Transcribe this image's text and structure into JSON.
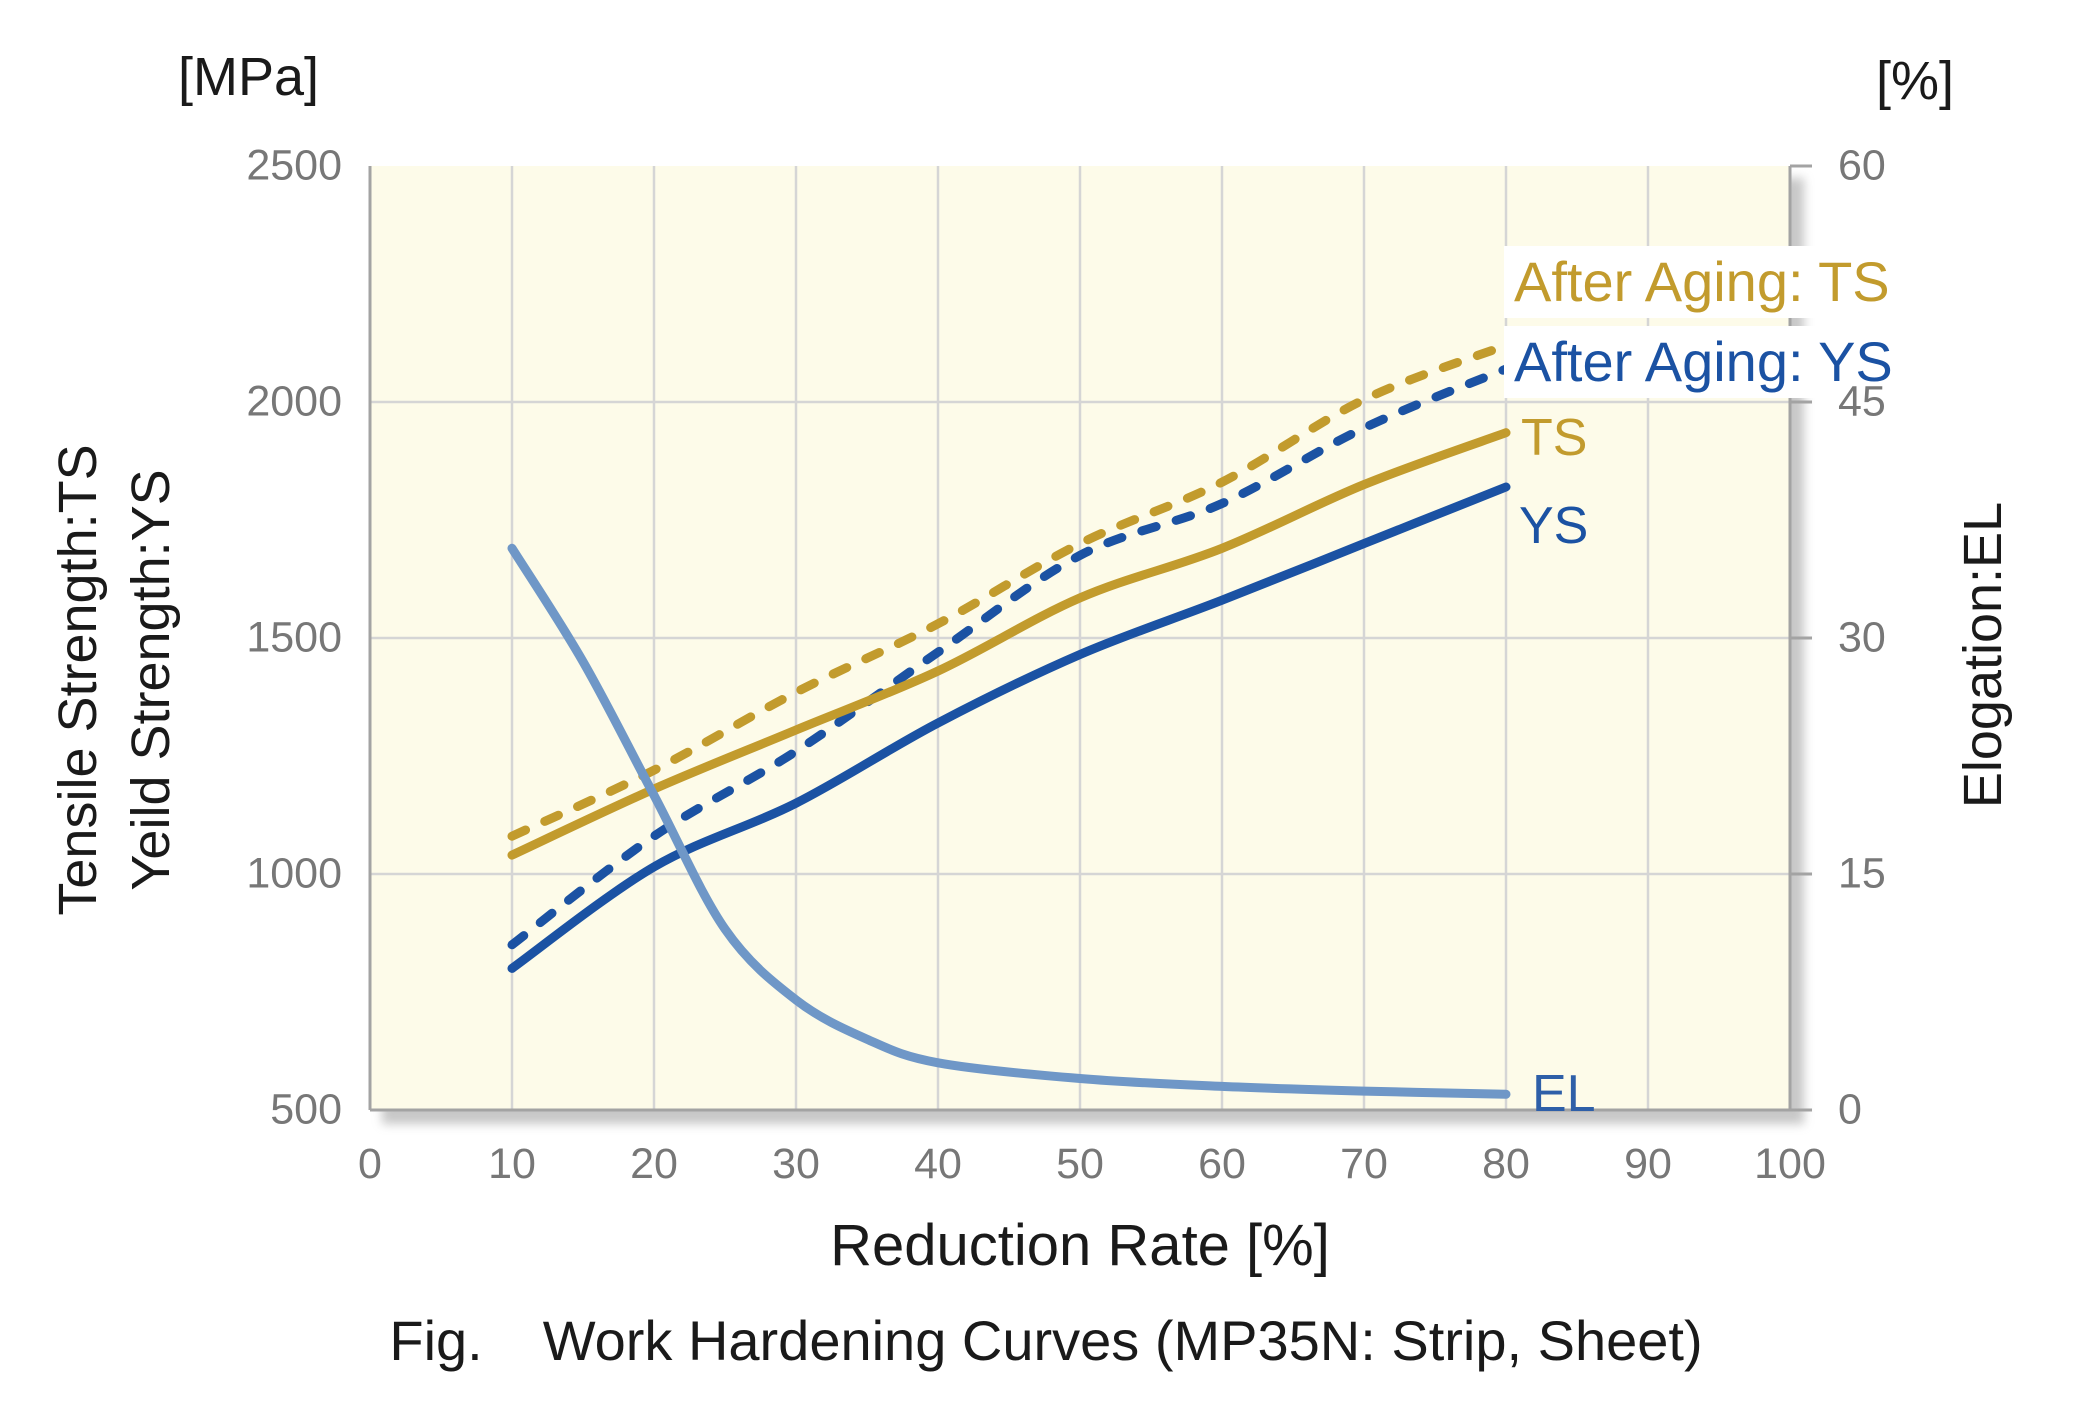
{
  "axes": {
    "left_unit": "[MPa]",
    "right_unit": "[%]",
    "left_title_1": "Tensile Strength:TS",
    "left_title_2": "Yeild Strength:YS",
    "right_title": "Elogation:EL",
    "x_title": "Reduction Rate [%]"
  },
  "caption": {
    "prefix": "Fig.",
    "text": "Work Hardening Curves (MP35N: Strip, Sheet)"
  },
  "colors": {
    "gold": "#C29B2D",
    "dark_blue": "#1B52A3",
    "light_blue": "#6F97C7",
    "plot_background": "#FDFBE9",
    "gridline": "#D5D5D5",
    "axis_line": "#A3A3A3",
    "tick_text": "#777777"
  },
  "chart_data": {
    "type": "line",
    "title": "Work Hardening Curves (MP35N: Strip, Sheet)",
    "grid": true,
    "plot_bg": "#FDFBE9",
    "x_axis": {
      "label": "Reduction Rate [%]",
      "min": 0,
      "max": 100,
      "ticks": [
        0,
        10,
        20,
        30,
        40,
        50,
        60,
        70,
        80,
        90,
        100
      ]
    },
    "y_axis_left": {
      "unit": "MPa",
      "label": "Tensile Strength:TS / Yeild Strength:YS",
      "min": 500,
      "max": 2500,
      "ticks": [
        500,
        1000,
        1500,
        2000,
        2500
      ]
    },
    "y_axis_right": {
      "unit": "%",
      "label": "Elogation:EL",
      "min": 0,
      "max": 60,
      "ticks": [
        0,
        15,
        30,
        45,
        60
      ]
    },
    "series": [
      {
        "name": "After Aging: TS",
        "axis": "left",
        "line": "dashed",
        "color": "#C29B2D",
        "x": [
          10,
          20,
          30,
          40,
          50,
          60,
          70,
          80
        ],
        "y": [
          1080,
          1220,
          1385,
          1530,
          1700,
          1830,
          2005,
          2120
        ]
      },
      {
        "name": "After Aging: YS",
        "axis": "left",
        "line": "dashed",
        "color": "#1B52A3",
        "x": [
          10,
          20,
          30,
          40,
          50,
          60,
          70,
          80
        ],
        "y": [
          850,
          1080,
          1260,
          1470,
          1675,
          1785,
          1945,
          2070
        ]
      },
      {
        "name": "TS",
        "axis": "left",
        "line": "solid",
        "color": "#C29B2D",
        "x": [
          10,
          20,
          30,
          40,
          50,
          60,
          70,
          80
        ],
        "y": [
          1040,
          1180,
          1305,
          1430,
          1585,
          1690,
          1825,
          1935
        ]
      },
      {
        "name": "YS",
        "axis": "left",
        "line": "solid",
        "color": "#1B52A3",
        "x": [
          10,
          20,
          30,
          40,
          50,
          60,
          70,
          80
        ],
        "y": [
          800,
          1015,
          1150,
          1320,
          1465,
          1580,
          1700,
          1820
        ]
      },
      {
        "name": "EL",
        "axis": "right",
        "line": "solid",
        "color": "#6F97C7",
        "x": [
          10,
          15,
          20,
          25,
          30,
          35,
          40,
          50,
          60,
          70,
          80
        ],
        "y": [
          35.7,
          28.5,
          20,
          11.5,
          7,
          4.5,
          3,
          2,
          1.5,
          1.2,
          1
        ]
      }
    ]
  },
  "annotations": {
    "after_aging_ts": "After Aging: TS",
    "after_aging_ys": "After Aging: YS",
    "ts": "TS",
    "ys": "YS",
    "el": "EL"
  }
}
